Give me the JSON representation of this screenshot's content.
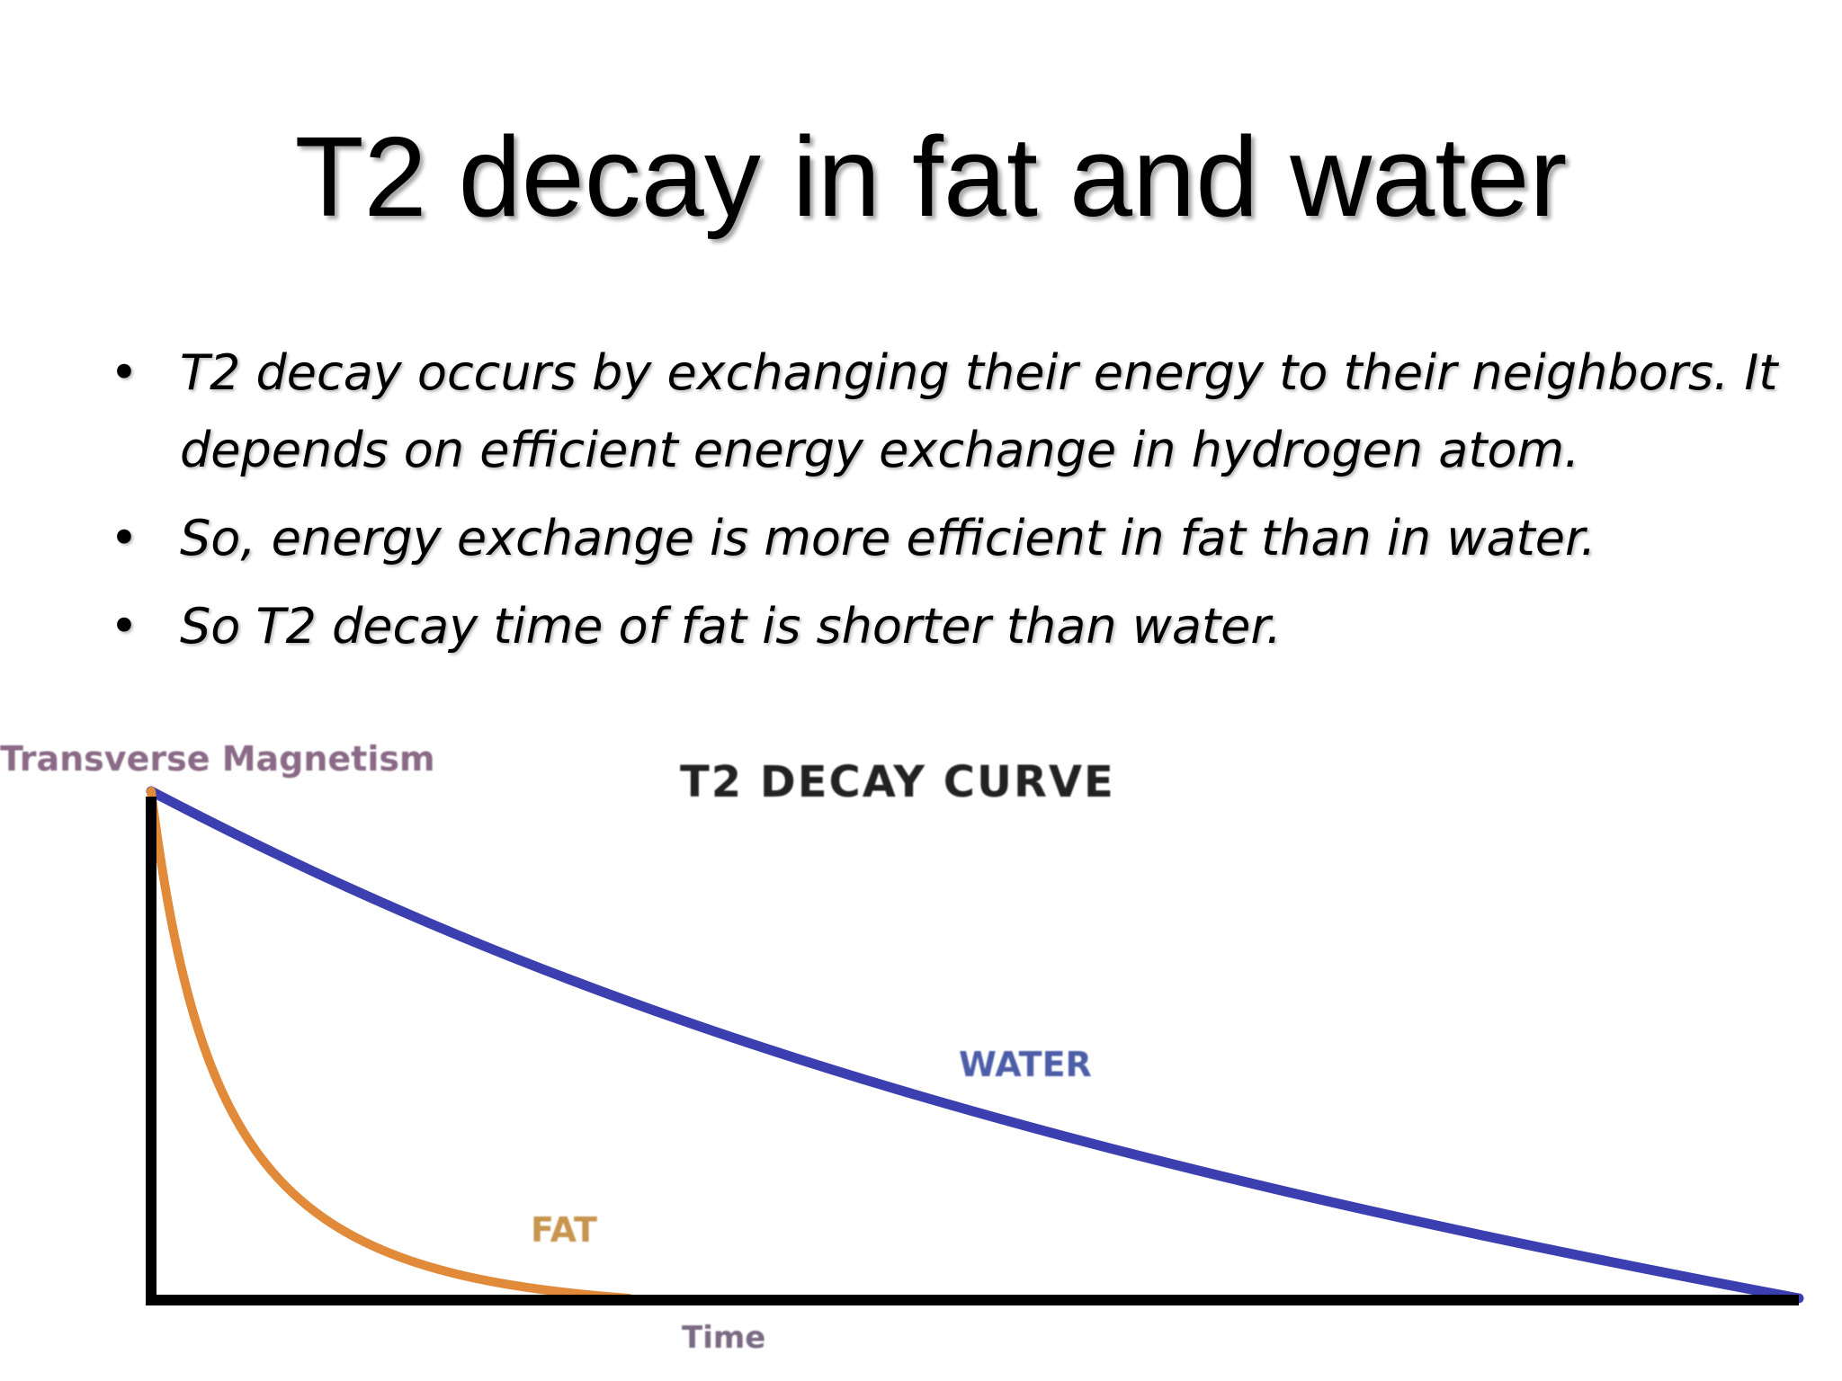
{
  "slide": {
    "title": "T2 decay in fat and water",
    "bullets": [
      "T2 decay occurs by exchanging their energy to their neighbors. It depends on efficient energy exchange in hydrogen atom.",
      "So, energy exchange is more efficient in fat than in water.",
      "So T2 decay time of fat is shorter than water."
    ],
    "bullet_glyph": "•"
  },
  "figure": {
    "title": "T2 DECAY CURVE",
    "y_label": "Transverse Magnetism",
    "x_label": "Time",
    "series": [
      {
        "name": "WATER",
        "color": "#3b3fb0",
        "decay_end_fraction": 1.0
      },
      {
        "name": "FAT",
        "color": "#e08a3a",
        "decay_end_fraction": 0.29
      }
    ],
    "axis_color": "#000000"
  }
}
